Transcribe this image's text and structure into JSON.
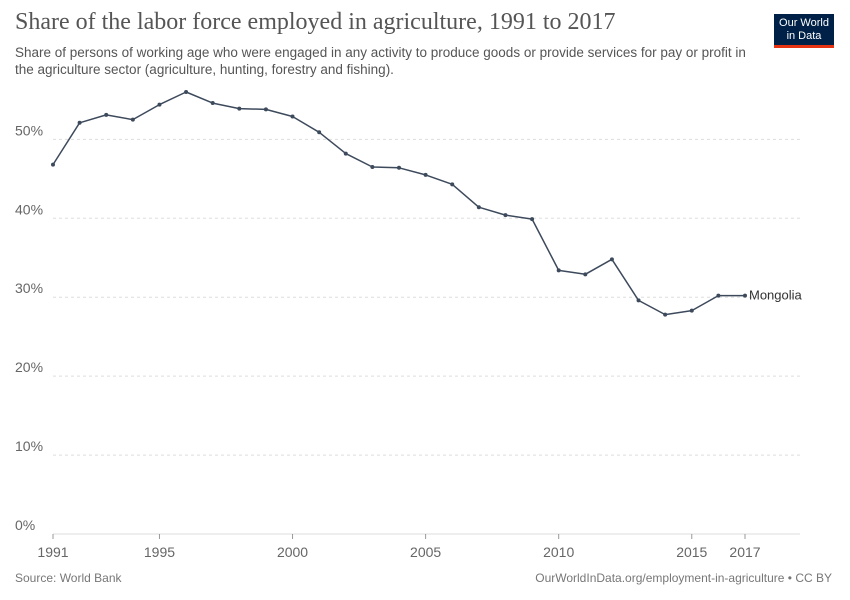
{
  "header": {
    "title": "Share of the labor force employed in agriculture, 1991 to 2017",
    "subtitle": "Share of persons of working age who were engaged in any activity to produce goods or provide services for pay or profit in the agriculture sector (agriculture, hunting, forestry and fishing).",
    "logo_line1": "Our World",
    "logo_line2": "in Data"
  },
  "footer": {
    "source": "Source: World Bank",
    "url": "OurWorldInData.org/employment-in-agriculture • CC BY"
  },
  "colors": {
    "line": "#3d4a5c",
    "grid": "#dddddd",
    "logo_bg": "#002147",
    "logo_accent": "#e63312"
  },
  "chart_data": {
    "type": "line",
    "title": "Share of the labor force employed in agriculture, 1991 to 2017",
    "xlabel": "",
    "ylabel": "",
    "xlim": [
      1991,
      2017
    ],
    "ylim": [
      0,
      56
    ],
    "x_ticks": [
      1991,
      1995,
      2000,
      2005,
      2010,
      2015,
      2017
    ],
    "y_ticks": [
      0,
      10,
      20,
      30,
      40,
      50
    ],
    "y_tick_labels": [
      "0%",
      "10%",
      "20%",
      "30%",
      "40%",
      "50%"
    ],
    "grid": "horizontal dashed",
    "series": [
      {
        "name": "Mongolia",
        "x": [
          1991,
          1992,
          1993,
          1994,
          1995,
          1996,
          1997,
          1998,
          1999,
          2000,
          2001,
          2002,
          2003,
          2004,
          2005,
          2006,
          2007,
          2008,
          2009,
          2010,
          2011,
          2012,
          2013,
          2014,
          2015,
          2016,
          2017
        ],
        "values": [
          46.8,
          52.1,
          53.1,
          52.5,
          54.4,
          56.0,
          54.6,
          53.9,
          53.8,
          52.9,
          50.9,
          48.2,
          46.5,
          46.4,
          45.5,
          44.3,
          41.4,
          40.4,
          39.9,
          33.4,
          32.9,
          34.8,
          29.6,
          27.8,
          28.3,
          30.2,
          30.2
        ]
      }
    ]
  }
}
